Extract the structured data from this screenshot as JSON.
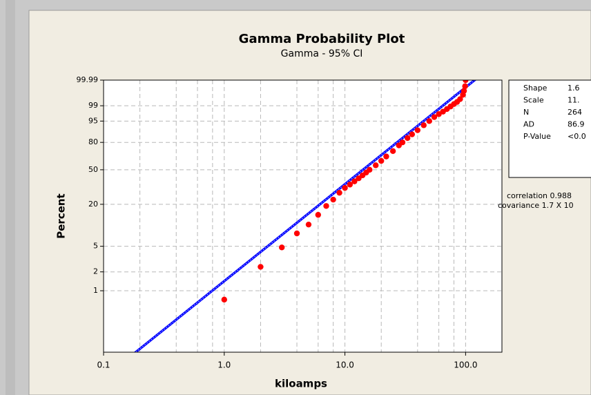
{
  "chart_data": {
    "type": "probability",
    "title": "Gamma Probability Plot",
    "subtitle": "Gamma - 95% CI",
    "xlabel": "kiloamps",
    "ylabel": "Percent",
    "xscale": "log",
    "yscale": "gamma",
    "xlim": [
      0.1,
      200
    ],
    "xticks": [
      0.1,
      {
        "value": 1,
        "label": "1.0"
      },
      {
        "value": 10,
        "label": "10.0"
      },
      {
        "value": 100,
        "label": "100.0"
      }
    ],
    "xgrid_minor": [
      0.2,
      0.4,
      0.6,
      0.8,
      2,
      4,
      6,
      8,
      20,
      40,
      60,
      80,
      200
    ],
    "ylim": [
      0.1,
      99.99
    ],
    "yticks": [
      99.99,
      99,
      95,
      80,
      50,
      20,
      5,
      2,
      1
    ],
    "grid": true,
    "point_color": "#ff0000",
    "fit_color": "#0000ff",
    "x": [
      1,
      2,
      3,
      4,
      5,
      6,
      7,
      8,
      9,
      10,
      11,
      12,
      13,
      14,
      15,
      16,
      18,
      20,
      22,
      25,
      28,
      30,
      33,
      36,
      40,
      45,
      50,
      55,
      60,
      65,
      70,
      75,
      80,
      85,
      90,
      95,
      97,
      99,
      100
    ],
    "values": [
      0.72,
      2.4,
      4.8,
      7.8,
      10.5,
      14.4,
      19,
      23,
      28,
      32,
      35,
      38,
      41,
      44,
      47,
      50,
      55,
      60,
      65,
      71,
      77,
      80,
      84,
      87,
      90,
      93,
      95,
      96.5,
      97.4,
      98,
      98.5,
      98.9,
      99.2,
      99.4,
      99.6,
      99.8,
      99.9,
      99.96,
      99.99
    ],
    "stats": [
      {
        "name": "Shape",
        "value": 1.6
      },
      {
        "name": "Scale",
        "value": {
          "value": 11,
          "label": "11."
        }
      },
      {
        "name": "N",
        "value": 264
      },
      {
        "name": "AD",
        "value": 86.9
      },
      {
        "name": "P-Value",
        "value": "<0.0"
      }
    ],
    "annotations": [
      "correlation 0.988",
      "covariance 1.7 X 10"
    ]
  }
}
